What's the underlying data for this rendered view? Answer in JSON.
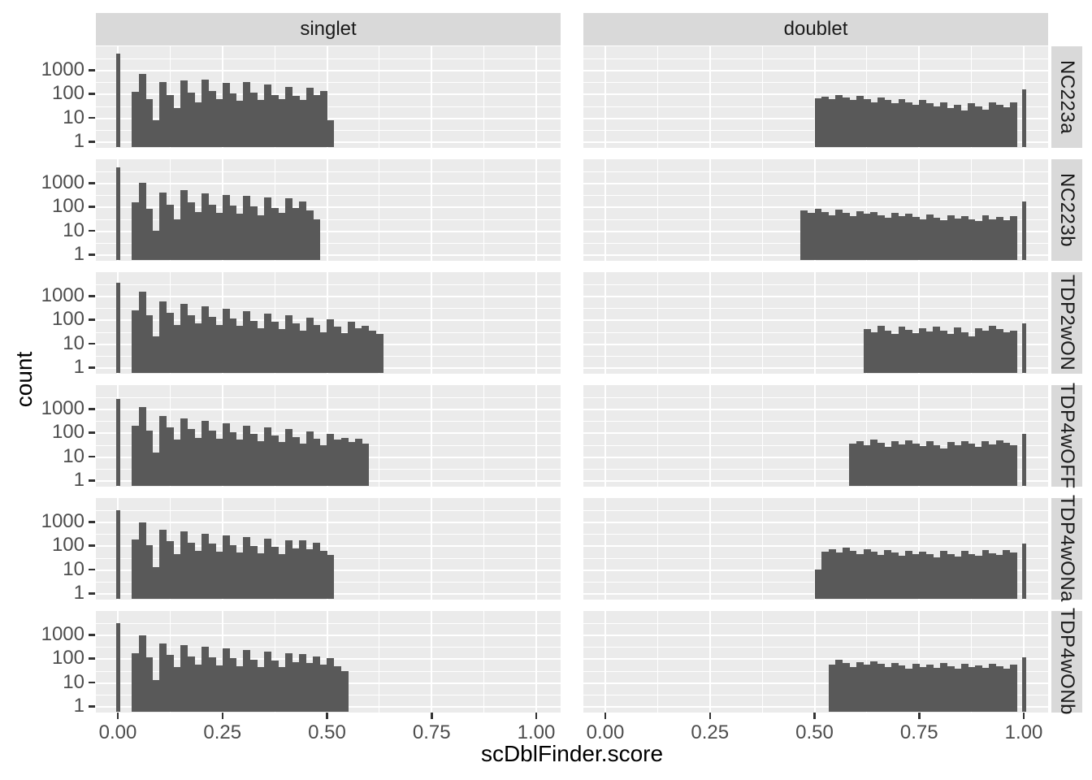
{
  "axes": {
    "x_title": "scDblFinder.score",
    "y_title": "count",
    "x_tick_labels": [
      "0.00",
      "0.25",
      "0.50",
      "0.75",
      "1.00"
    ],
    "y_tick_labels": [
      "1",
      "10",
      "100",
      "1000"
    ]
  },
  "facets": {
    "columns": [
      "singlet",
      "doublet"
    ],
    "rows": [
      "NC223a",
      "NC223b",
      "TDP2wON",
      "TDP4wOFF",
      "TDP4wONa",
      "TDP4wONb"
    ]
  },
  "colors": {
    "bar": "#595959",
    "panel_background": "#ebebeb",
    "strip_background": "#d9d9d9",
    "gridline": "#ffffff",
    "tick_text": "#4d4d4d",
    "strip_text": "#1a1a1a",
    "axis_title_text": "#000000"
  },
  "chart_data": {
    "type": "bar",
    "subtype": "faceted-histogram",
    "title": "",
    "xlabel": "scDblFinder.score",
    "ylabel": "count",
    "y_scale": "log10",
    "x_ticks": [
      0,
      0.25,
      0.5,
      0.75,
      1.0
    ],
    "x_minor_ticks": [
      0.125,
      0.375,
      0.625,
      0.875
    ],
    "y_ticks": [
      1,
      10,
      100,
      1000
    ],
    "y_minor_ticks": [
      3.162,
      31.62,
      316.2,
      3162
    ],
    "xlim": [
      -0.05,
      1.05
    ],
    "ylim_counts": [
      1,
      10000
    ],
    "grid": true,
    "legend": "none",
    "bin_width": 0.016667,
    "facet_columns": [
      "singlet",
      "doublet"
    ],
    "facet_rows": [
      "NC223a",
      "NC223b",
      "TDP2wON",
      "TDP4wOFF",
      "TDP4wONa",
      "TDP4wONb"
    ],
    "facets": [
      {
        "row": "NC223a",
        "col": "singlet",
        "zero_spike": 5000,
        "bin_start": 0.0333,
        "counts": [
          120,
          700,
          60,
          8,
          300,
          90,
          25,
          350,
          110,
          45,
          380,
          130,
          60,
          280,
          100,
          50,
          320,
          110,
          55,
          240,
          90,
          60,
          200,
          80,
          55,
          180,
          90,
          130,
          8
        ],
        "one_spike": null
      },
      {
        "row": "NC223a",
        "col": "doublet",
        "zero_spike": null,
        "bin_start": 0.5,
        "counts": [
          65,
          75,
          60,
          90,
          70,
          55,
          80,
          60,
          45,
          70,
          55,
          40,
          60,
          45,
          35,
          55,
          40,
          30,
          45,
          25,
          35,
          20,
          40,
          30,
          22,
          45,
          35,
          28,
          45
        ],
        "one_spike": 150
      },
      {
        "row": "NC223b",
        "col": "singlet",
        "zero_spike": 4500,
        "bin_start": 0.0333,
        "counts": [
          150,
          1000,
          80,
          10,
          400,
          120,
          30,
          500,
          150,
          60,
          350,
          120,
          55,
          300,
          110,
          50,
          280,
          100,
          45,
          250,
          90,
          55,
          220,
          85,
          160,
          70,
          30
        ],
        "one_spike": null
      },
      {
        "row": "NC223b",
        "col": "doublet",
        "zero_spike": null,
        "bin_start": 0.4667,
        "counts": [
          70,
          55,
          80,
          60,
          45,
          75,
          55,
          40,
          65,
          50,
          60,
          45,
          35,
          55,
          40,
          50,
          38,
          30,
          48,
          35,
          28,
          45,
          32,
          40,
          30,
          25,
          42,
          30,
          38,
          28,
          40
        ],
        "one_spike": 160
      },
      {
        "row": "TDP2wON",
        "col": "singlet",
        "zero_spike": 3500,
        "bin_start": 0.0333,
        "counts": [
          250,
          1500,
          150,
          20,
          600,
          200,
          60,
          450,
          150,
          70,
          350,
          130,
          60,
          280,
          110,
          55,
          220,
          90,
          45,
          180,
          80,
          40,
          150,
          70,
          35,
          120,
          60,
          30,
          100,
          50,
          28,
          80,
          45,
          55,
          35,
          25
        ],
        "one_spike": null
      },
      {
        "row": "TDP2wON",
        "col": "doublet",
        "zero_spike": null,
        "bin_start": 0.6167,
        "counts": [
          40,
          30,
          55,
          35,
          25,
          50,
          38,
          28,
          45,
          32,
          50,
          35,
          25,
          48,
          30,
          20,
          45,
          35,
          55,
          40,
          30,
          35
        ],
        "one_spike": 70
      },
      {
        "row": "TDP4wOFF",
        "col": "singlet",
        "zero_spike": 2500,
        "bin_start": 0.0333,
        "counts": [
          200,
          1200,
          120,
          15,
          500,
          160,
          50,
          400,
          140,
          60,
          300,
          120,
          55,
          250,
          100,
          50,
          200,
          85,
          45,
          170,
          75,
          40,
          140,
          65,
          35,
          110,
          55,
          30,
          90,
          50,
          60,
          40,
          55,
          35
        ],
        "one_spike": null
      },
      {
        "row": "TDP4wOFF",
        "col": "doublet",
        "zero_spike": null,
        "bin_start": 0.5833,
        "counts": [
          35,
          45,
          30,
          50,
          38,
          25,
          45,
          32,
          48,
          35,
          28,
          42,
          30,
          22,
          40,
          30,
          45,
          35,
          25,
          42,
          32,
          48,
          38,
          30
        ],
        "one_spike": 90
      },
      {
        "row": "TDP4wONa",
        "col": "singlet",
        "zero_spike": 3000,
        "bin_start": 0.0333,
        "counts": [
          180,
          900,
          100,
          12,
          450,
          150,
          45,
          380,
          130,
          60,
          320,
          120,
          55,
          270,
          105,
          50,
          230,
          95,
          48,
          200,
          85,
          45,
          170,
          75,
          160,
          70,
          130,
          60,
          40
        ],
        "one_spike": null
      },
      {
        "row": "TDP4wONa",
        "col": "doublet",
        "zero_spike": null,
        "bin_start": 0.5,
        "counts": [
          10,
          55,
          70,
          50,
          80,
          60,
          45,
          70,
          55,
          40,
          65,
          50,
          38,
          60,
          45,
          55,
          42,
          32,
          58,
          44,
          35,
          60,
          45,
          38,
          62,
          48,
          40,
          65,
          50
        ],
        "one_spike": 120
      },
      {
        "row": "TDP4wONb",
        "col": "singlet",
        "zero_spike": 3000,
        "bin_start": 0.0333,
        "counts": [
          170,
          950,
          110,
          12,
          420,
          140,
          45,
          360,
          125,
          55,
          300,
          115,
          52,
          260,
          100,
          48,
          220,
          90,
          45,
          190,
          80,
          42,
          160,
          70,
          150,
          65,
          125,
          55,
          100,
          48,
          30
        ],
        "one_spike": null
      },
      {
        "row": "TDP4wONb",
        "col": "doublet",
        "zero_spike": null,
        "bin_start": 0.5333,
        "counts": [
          55,
          90,
          65,
          45,
          70,
          55,
          75,
          58,
          42,
          65,
          50,
          38,
          60,
          45,
          55,
          40,
          62,
          48,
          36,
          58,
          44,
          52,
          40,
          60,
          46,
          38,
          55
        ],
        "one_spike": 110
      }
    ]
  }
}
